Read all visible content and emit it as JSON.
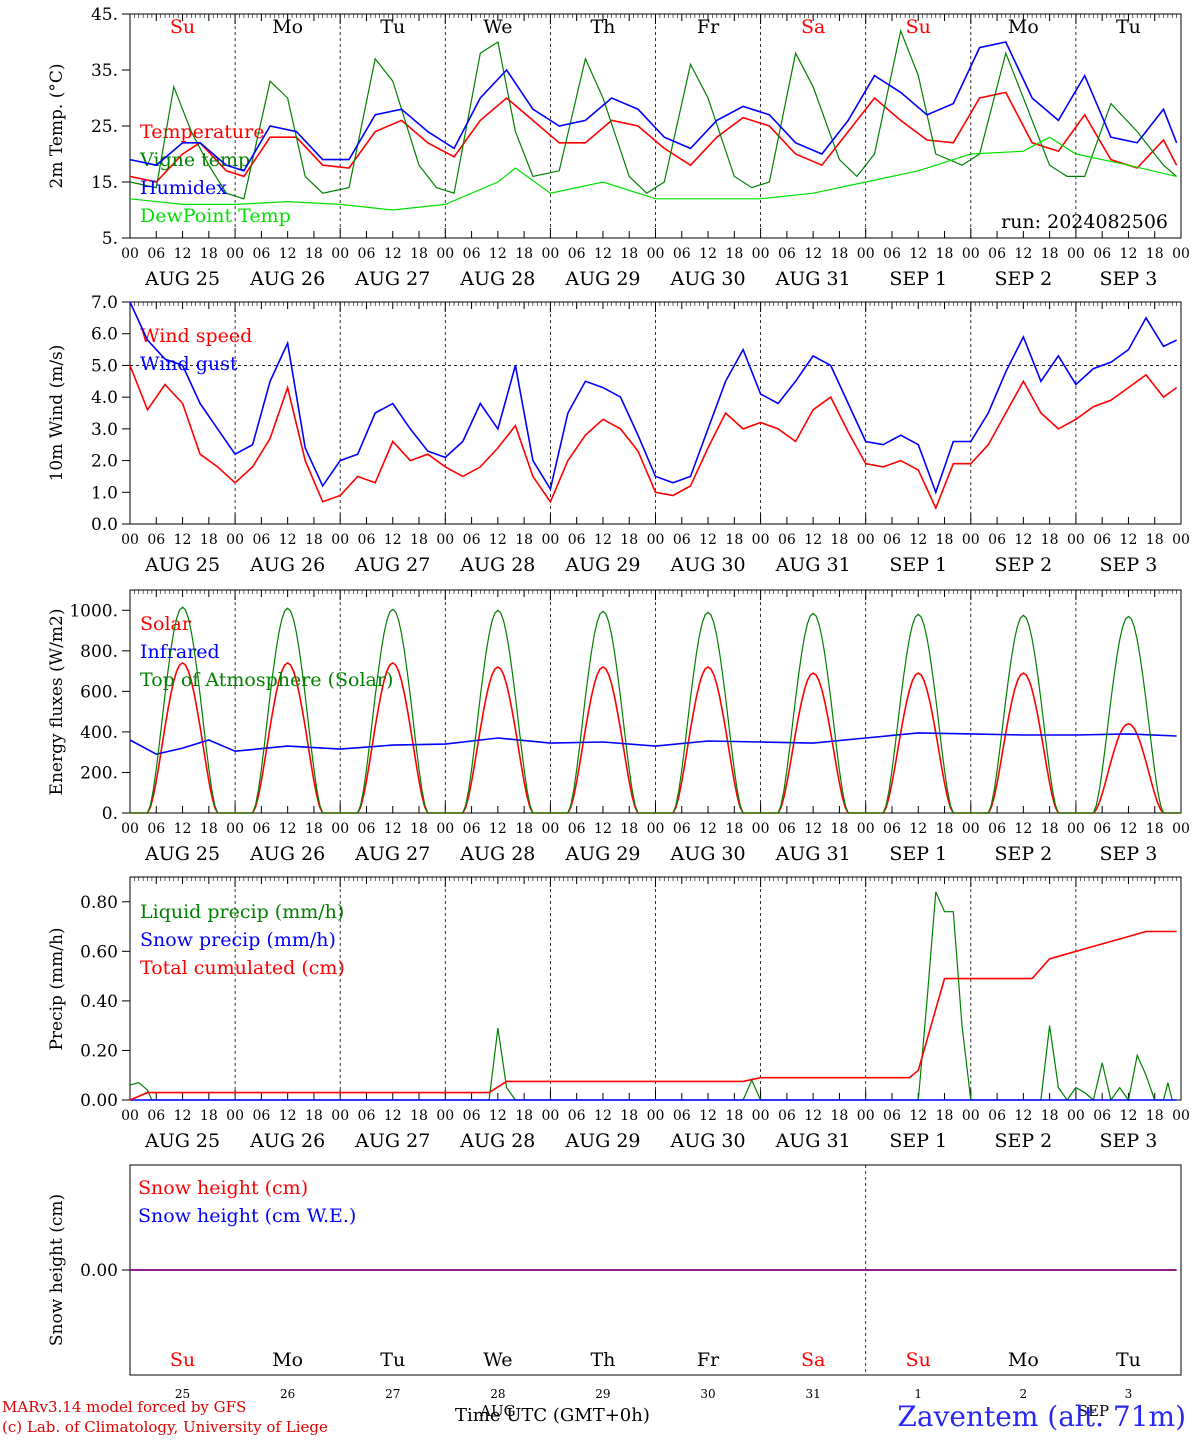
{
  "footer": {
    "model": "MARv3.14 model forced by GFS",
    "lab": "(c) Lab. of Climatology, University of Liege",
    "time_label": "Time UTC (GMT+0h)",
    "station": "Zaventem (alt. 71m)",
    "run": "run: 2024082506"
  },
  "colors": {
    "red": "#ff0000",
    "green": "#008000",
    "blue": "#0000ff",
    "lime": "#00e000",
    "purple": "#800080"
  },
  "days": {
    "weekday": [
      "Su",
      "Mo",
      "Tu",
      "We",
      "Th",
      "Fr",
      "Sa",
      "Su",
      "Mo",
      "Tu"
    ],
    "weekend_red": [
      true,
      false,
      false,
      false,
      false,
      false,
      true,
      true,
      false,
      false
    ],
    "date_labels": [
      "AUG 25",
      "AUG 26",
      "AUG 27",
      "AUG 28",
      "AUG 29",
      "AUG 30",
      "AUG 31",
      "SEP  1",
      "SEP  2",
      "SEP  3"
    ],
    "day_numbers": [
      "25",
      "26",
      "27",
      "28",
      "29",
      "30",
      "31",
      "1",
      "2",
      "3"
    ],
    "month_labels": [
      "AUG",
      "SEP"
    ],
    "hour_ticks": [
      "00",
      "06",
      "12",
      "18"
    ]
  },
  "chart_data": [
    {
      "type": "line",
      "panel": "temperature",
      "ylabel": "2m Temp. (°C)",
      "ylim": [
        5,
        45
      ],
      "ytick_labels": [
        "5.",
        "15.",
        "25.",
        "35.",
        "45."
      ],
      "x_unit": "hours since 2024-08-25 00 UTC",
      "series": [
        {
          "name": "Temperature",
          "color": "red",
          "x": [
            0,
            6,
            12,
            16,
            22,
            26,
            32,
            38,
            44,
            50,
            56,
            62,
            68,
            74,
            80,
            86,
            92,
            98,
            104,
            110,
            116,
            122,
            128,
            134,
            140,
            146,
            152,
            158,
            164,
            170,
            176,
            182,
            188,
            194,
            200,
            206,
            212,
            218,
            224,
            230,
            236,
            239
          ],
          "values": [
            16,
            15,
            20,
            22,
            17,
            16,
            23,
            23,
            18,
            17.5,
            24,
            26,
            22,
            19.5,
            26,
            30,
            26,
            22,
            22,
            26,
            25,
            21,
            18,
            23,
            26.5,
            25,
            20,
            18,
            24,
            30,
            26,
            22.5,
            22,
            30,
            31,
            22,
            20.5,
            27,
            19,
            17.5,
            22.5,
            18
          ]
        },
        {
          "name": "Vigne temp",
          "color": "green",
          "x": [
            0,
            6,
            10,
            14,
            18,
            22,
            26,
            32,
            36,
            40,
            44,
            50,
            56,
            60,
            66,
            70,
            74,
            80,
            84,
            88,
            92,
            98,
            104,
            108,
            114,
            118,
            122,
            128,
            132,
            138,
            142,
            146,
            152,
            156,
            162,
            166,
            170,
            176,
            180,
            184,
            190,
            194,
            200,
            204,
            210,
            214,
            218,
            224,
            230,
            236,
            239
          ],
          "values": [
            15,
            14,
            32,
            24,
            18,
            13,
            12,
            33,
            30,
            16,
            13,
            14,
            37,
            33,
            18,
            14,
            13,
            38,
            40,
            24,
            16,
            17,
            37,
            30,
            16,
            13,
            15,
            36,
            30,
            16,
            14,
            15,
            38,
            32,
            19,
            16,
            20,
            42,
            34,
            20,
            18,
            20,
            38,
            30,
            18,
            16,
            16,
            29,
            24,
            18,
            16
          ]
        },
        {
          "name": "Humidex",
          "color": "blue",
          "x": [
            0,
            6,
            12,
            16,
            22,
            26,
            32,
            38,
            44,
            50,
            56,
            62,
            68,
            74,
            80,
            86,
            92,
            98,
            104,
            110,
            116,
            122,
            128,
            134,
            140,
            146,
            152,
            158,
            164,
            170,
            176,
            182,
            188,
            194,
            200,
            206,
            212,
            218,
            224,
            230,
            236,
            239
          ],
          "values": [
            19,
            18,
            22,
            22,
            18,
            17,
            25,
            24,
            19,
            19,
            27,
            28,
            24,
            21,
            30,
            35,
            28,
            25,
            26,
            30,
            28,
            23,
            21,
            26,
            28.5,
            27,
            22,
            20,
            26,
            34,
            31,
            27,
            29,
            39,
            40,
            30,
            26,
            34,
            23,
            22,
            28,
            22
          ]
        },
        {
          "name": "DewPoint Temp",
          "color": "lime",
          "x": [
            0,
            12,
            24,
            36,
            48,
            60,
            72,
            84,
            88,
            96,
            108,
            120,
            132,
            144,
            156,
            168,
            180,
            192,
            204,
            210,
            216,
            228,
            239
          ],
          "values": [
            12,
            11,
            11,
            11.5,
            11,
            10,
            11,
            15,
            17.5,
            13,
            15,
            12,
            12,
            12,
            13,
            15,
            17,
            20,
            20.5,
            23,
            20,
            18,
            16
          ]
        }
      ]
    },
    {
      "type": "line",
      "panel": "wind",
      "ylabel": "10m Wind (m/s)",
      "ylim": [
        0,
        7
      ],
      "ytick_labels": [
        "0.0",
        "1.0",
        "2.0",
        "3.0",
        "4.0",
        "5.0",
        "6.0",
        "7.0"
      ],
      "reference_line": 5.0,
      "x_unit": "hours since 2024-08-25 00 UTC",
      "series": [
        {
          "name": "Wind speed",
          "color": "red",
          "x": [
            0,
            4,
            8,
            12,
            16,
            20,
            24,
            28,
            32,
            36,
            40,
            44,
            48,
            52,
            56,
            60,
            64,
            68,
            72,
            76,
            80,
            84,
            88,
            92,
            96,
            100,
            104,
            108,
            112,
            116,
            120,
            124,
            128,
            132,
            136,
            140,
            144,
            148,
            152,
            156,
            160,
            164,
            168,
            172,
            176,
            180,
            184,
            188,
            192,
            196,
            200,
            204,
            208,
            212,
            216,
            220,
            224,
            228,
            232,
            236,
            239
          ],
          "values": [
            5.0,
            3.6,
            4.4,
            3.8,
            2.2,
            1.8,
            1.3,
            1.8,
            2.7,
            4.3,
            2.0,
            0.7,
            0.9,
            1.5,
            1.3,
            2.6,
            2.0,
            2.2,
            1.8,
            1.5,
            1.8,
            2.4,
            3.1,
            1.5,
            0.7,
            2.0,
            2.8,
            3.3,
            3.0,
            2.3,
            1.0,
            0.9,
            1.2,
            2.4,
            3.5,
            3.0,
            3.2,
            3.0,
            2.6,
            3.6,
            4.0,
            2.9,
            1.9,
            1.8,
            2.0,
            1.7,
            0.5,
            1.9,
            1.9,
            2.5,
            3.5,
            4.5,
            3.5,
            3.0,
            3.3,
            3.7,
            3.9,
            4.3,
            4.7,
            4.0,
            4.3
          ]
        },
        {
          "name": "Wind gust",
          "color": "blue",
          "x": [
            0,
            4,
            8,
            12,
            16,
            20,
            24,
            28,
            32,
            36,
            40,
            44,
            48,
            52,
            56,
            60,
            64,
            68,
            72,
            76,
            80,
            84,
            88,
            92,
            96,
            100,
            104,
            108,
            112,
            116,
            120,
            124,
            128,
            132,
            136,
            140,
            144,
            148,
            152,
            156,
            160,
            164,
            168,
            172,
            176,
            180,
            184,
            188,
            192,
            196,
            200,
            204,
            208,
            212,
            216,
            220,
            224,
            228,
            232,
            236,
            239
          ],
          "values": [
            7.0,
            5.8,
            5.2,
            5.0,
            3.8,
            3.0,
            2.2,
            2.5,
            4.5,
            5.7,
            2.4,
            1.2,
            2.0,
            2.2,
            3.5,
            3.8,
            3.0,
            2.3,
            2.1,
            2.6,
            3.8,
            3.0,
            5.0,
            2.0,
            1.1,
            3.5,
            4.5,
            4.3,
            4.0,
            2.8,
            1.5,
            1.3,
            1.5,
            3.0,
            4.5,
            5.5,
            4.1,
            3.8,
            4.5,
            5.3,
            5.0,
            3.8,
            2.6,
            2.5,
            2.8,
            2.5,
            1.0,
            2.6,
            2.6,
            3.5,
            4.8,
            5.9,
            4.5,
            5.3,
            4.4,
            4.9,
            5.1,
            5.5,
            6.5,
            5.6,
            5.8
          ]
        }
      ]
    },
    {
      "type": "line",
      "panel": "energy",
      "ylabel": "Energy fluxes (W/m2)",
      "ylim": [
        0,
        1100
      ],
      "ytick_labels": [
        "0.",
        "200.",
        "400.",
        "600.",
        "800.",
        "1000."
      ],
      "x_unit": "hours since 2024-08-25 00 UTC",
      "series": [
        {
          "name": "Solar",
          "color": "red",
          "day_peaks": [
            740,
            740,
            740,
            720,
            720,
            720,
            690,
            690,
            690,
            440
          ],
          "daylight_hours": [
            4,
            20
          ]
        },
        {
          "name": "Infrared",
          "color": "blue",
          "x": [
            0,
            6,
            12,
            18,
            24,
            36,
            48,
            60,
            72,
            84,
            96,
            108,
            120,
            132,
            144,
            156,
            168,
            180,
            192,
            204,
            216,
            228,
            239
          ],
          "values": [
            360,
            290,
            320,
            360,
            305,
            330,
            315,
            335,
            340,
            370,
            345,
            350,
            330,
            355,
            350,
            345,
            370,
            395,
            390,
            385,
            385,
            390,
            380
          ]
        },
        {
          "name": "Top of Atmosphere (Solar)",
          "color": "green",
          "day_peaks": [
            1015,
            1010,
            1005,
            1000,
            995,
            990,
            985,
            980,
            975,
            970
          ],
          "daylight_hours": [
            4,
            20
          ]
        }
      ]
    },
    {
      "type": "line",
      "panel": "precip",
      "ylabel": "Precip (mm/h)",
      "ylim": [
        0,
        0.9
      ],
      "ytick_labels": [
        "0.00",
        "0.20",
        "0.40",
        "0.60",
        "0.80"
      ],
      "x_unit": "hours since 2024-08-25 00 UTC",
      "series": [
        {
          "name": "Liquid precip (mm/h)",
          "color": "green",
          "x": [
            0,
            2,
            4,
            5,
            82,
            84,
            86,
            88,
            140,
            142,
            144,
            180,
            182,
            184,
            186,
            188,
            190,
            192,
            208,
            210,
            212,
            214,
            216,
            218,
            220,
            222,
            224,
            226,
            228,
            230,
            232,
            234,
            236,
            237,
            238
          ],
          "values": [
            0.06,
            0.07,
            0.04,
            0,
            0,
            0.29,
            0.05,
            0,
            0,
            0.08,
            0,
            0,
            0.4,
            0.84,
            0.76,
            0.76,
            0.3,
            0,
            0,
            0.3,
            0.05,
            0,
            0.05,
            0.03,
            0,
            0.15,
            0,
            0.05,
            0,
            0.18,
            0.1,
            0,
            0,
            0.07,
            0
          ]
        },
        {
          "name": "Snow precip (mm/h)",
          "color": "blue",
          "x": [
            0,
            239
          ],
          "values": [
            0,
            0
          ]
        },
        {
          "name": "Total cumulated (cm)",
          "color": "red",
          "x": [
            0,
            4,
            82,
            86,
            140,
            144,
            178,
            180,
            186,
            188,
            206,
            210,
            216,
            220,
            228,
            232,
            239
          ],
          "values": [
            0.0,
            0.03,
            0.03,
            0.075,
            0.075,
            0.09,
            0.09,
            0.12,
            0.49,
            0.49,
            0.49,
            0.57,
            0.6,
            0.62,
            0.66,
            0.68,
            0.68
          ]
        }
      ]
    },
    {
      "type": "line",
      "panel": "snow",
      "ylabel": "Snow height (cm)",
      "ytick_labels": [
        "0.00"
      ],
      "series": [
        {
          "name": "Snow height (cm)",
          "color": "red",
          "x": [
            0,
            239
          ],
          "values": [
            0,
            0
          ]
        },
        {
          "name": "Snow height (cm W.E.)",
          "color": "blue",
          "x": [
            0,
            239
          ],
          "values": [
            0,
            0
          ]
        }
      ]
    }
  ]
}
